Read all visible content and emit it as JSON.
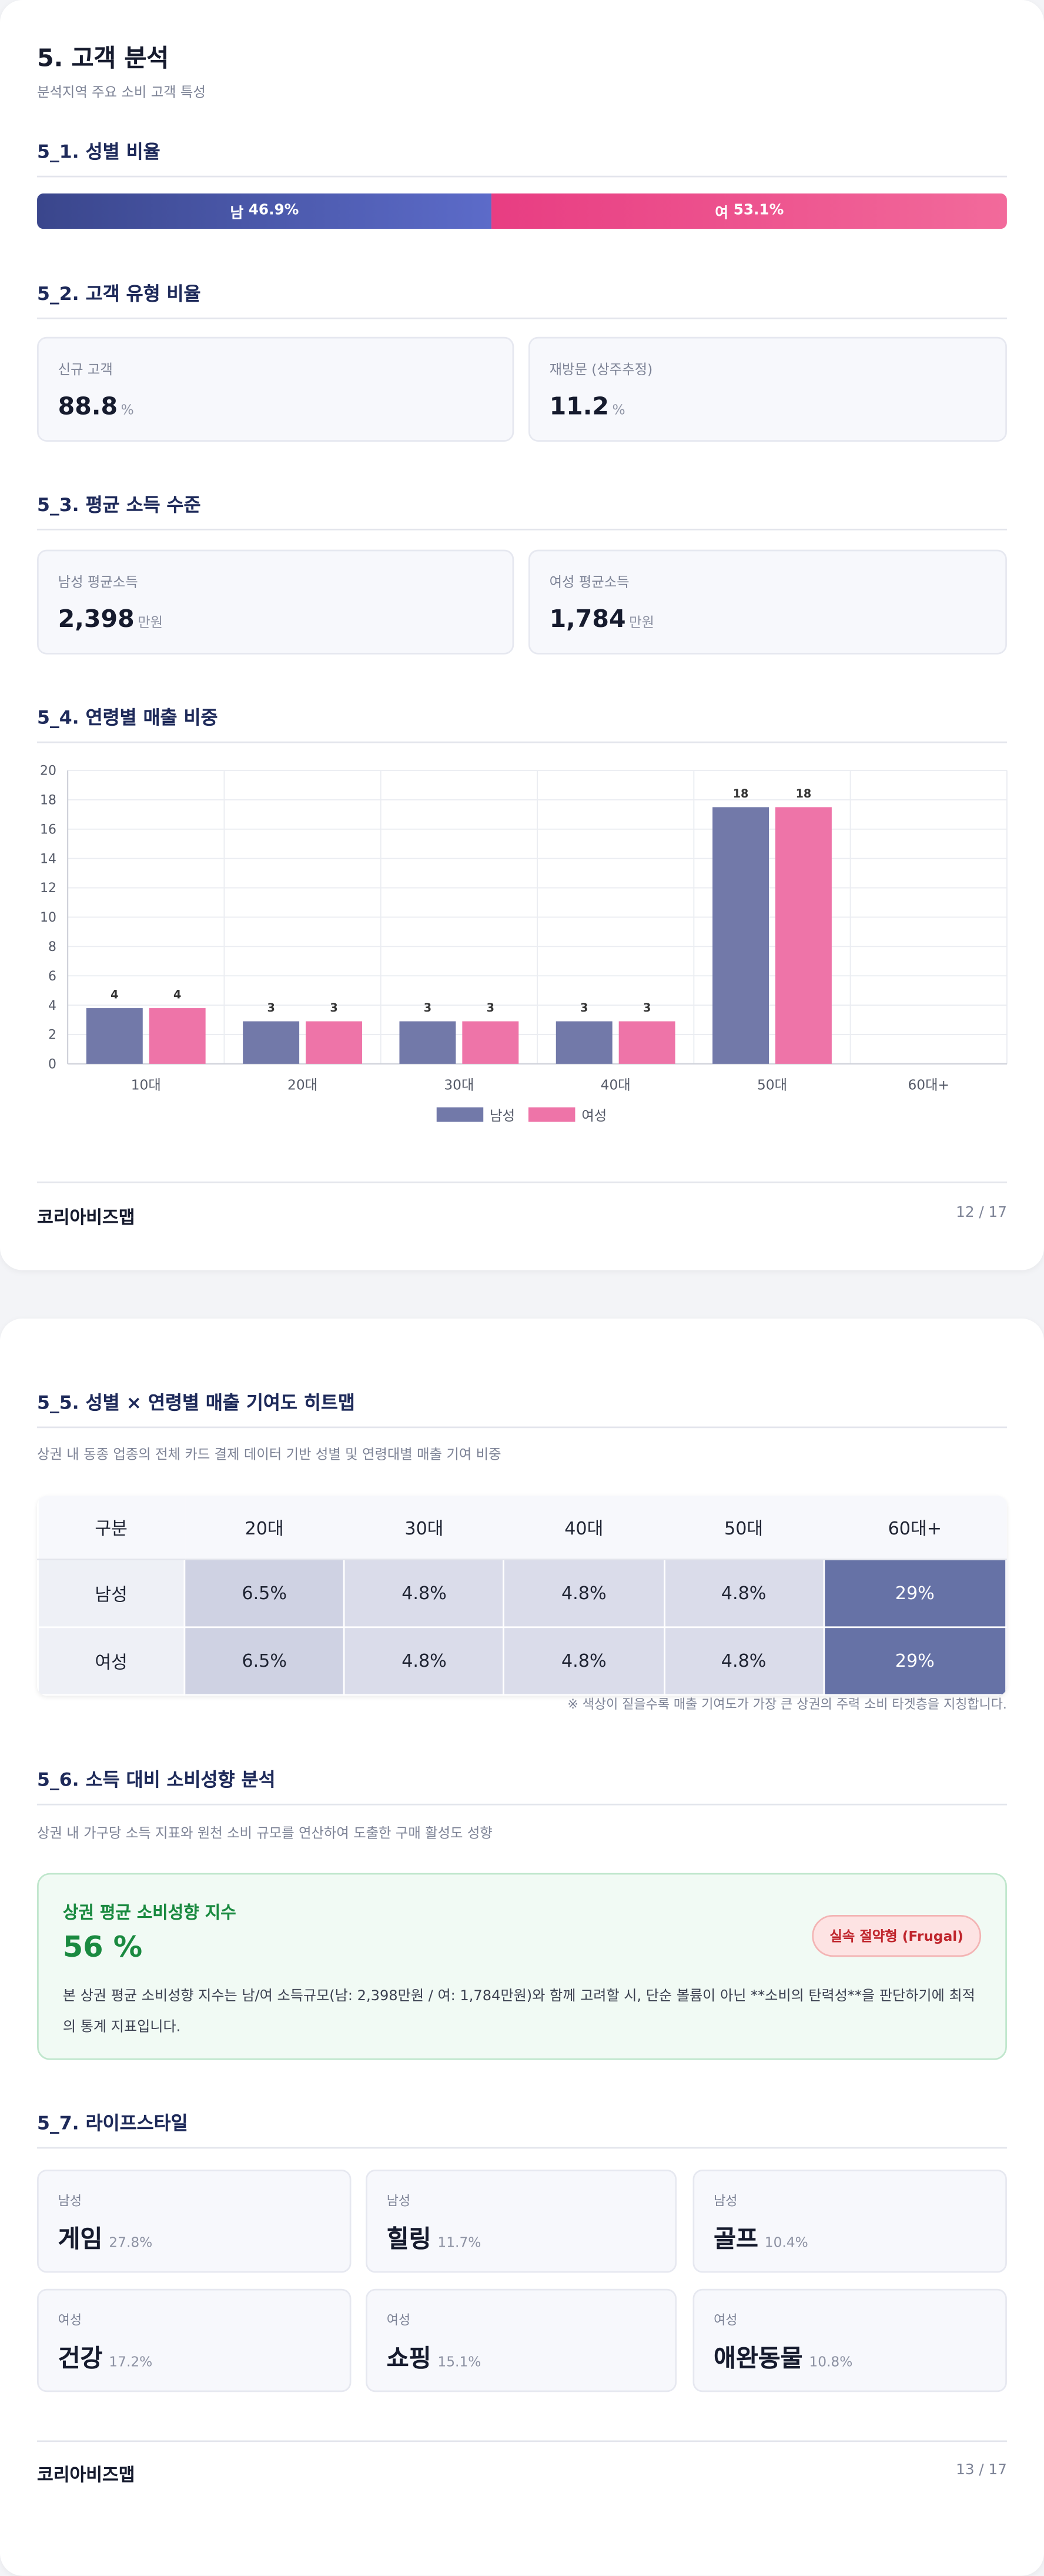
{
  "pages": [
    {
      "title": "5. 고객 분석",
      "subtitle": "분석지역 주요 소비 고객 특성",
      "gender": {
        "heading": "5_1. 성별 비율",
        "categories": [
          "남",
          "여"
        ],
        "values": [
          46.9,
          53.1
        ],
        "value_labels": [
          "46.9%",
          "53.1%"
        ]
      },
      "customer_type": {
        "heading": "5_2. 고객 유형 비율",
        "items": [
          {
            "label": "신규 고객",
            "value": 88.8,
            "unit": "%"
          },
          {
            "label": "재방문 (상주추정)",
            "value": 11.2,
            "unit": "%"
          }
        ]
      },
      "income": {
        "heading": "5_3. 평균 소득 수준",
        "items": [
          {
            "label": "남성 평균소득",
            "value": "2,398",
            "unit": "만원"
          },
          {
            "label": "여성 평균소득",
            "value": "1,784",
            "unit": "만원"
          }
        ]
      },
      "age_chart": {
        "heading": "5_4. 연령별 매출 비중",
        "type": "bar",
        "categories": [
          "10대",
          "20대",
          "30대",
          "40대",
          "50대",
          "60대+"
        ],
        "series": [
          {
            "name": "남성",
            "color": "#7279a9",
            "values": [
              3.8,
              2.9,
              2.9,
              2.9,
              17.5,
              null
            ],
            "value_labels": [
              "4",
              "3",
              "3",
              "3",
              "18",
              null
            ]
          },
          {
            "name": "여성",
            "color": "#ee74a8",
            "values": [
              3.8,
              2.9,
              2.9,
              2.9,
              17.5,
              null
            ],
            "value_labels": [
              "4",
              "3",
              "3",
              "3",
              "18",
              null
            ]
          }
        ],
        "ylim": [
          0,
          20
        ],
        "yticks": [
          0,
          2,
          4,
          6,
          8,
          10,
          12,
          14,
          16,
          18,
          20
        ],
        "grid": true
      },
      "footer": {
        "brand": "코리아비즈맵",
        "page": "12 / 17"
      }
    },
    {
      "heatmap": {
        "heading": "5_5. 성별 × 연령별 매출 기여도 히트맵",
        "description": "상권 내 동종 업종의 전체 카드 결제 데이터 기반 성별 및 연령대별 매출 기여 비중",
        "columns": [
          "구분",
          "20대",
          "30대",
          "40대",
          "50대",
          "60대+"
        ],
        "rows": [
          [
            "남성",
            "6.5%",
            "4.8%",
            "4.8%",
            "4.8%",
            "29%"
          ],
          [
            "여성",
            "6.5%",
            "4.8%",
            "4.8%",
            "4.8%",
            "29%"
          ]
        ],
        "note": "※ 색상이 짙을수록 매출 기여도가 가장 큰 상권의 주력 소비 타겟층을 지칭합니다."
      },
      "propensity": {
        "heading": "5_6. 소득 대비 소비성향 분석",
        "description": "상권 내 가구당 소득 지표와 원천 소비 규모를 연산하여 도출한 구매 활성도 성향",
        "card_title": "상권 평균 소비성향 지수",
        "value": "56 %",
        "badge": "실속 절약형 (Frugal)",
        "text": "본 상권 평균 소비성향 지수는 남/여 소득규모(남: 2,398만원 / 여: 1,784만원)와 함께 고려할 시, 단순 볼륨이 아닌 **소비의 탄력성**을 판단하기에 최적의 통계 지표입니다."
      },
      "lifestyle": {
        "heading": "5_7. 라이프스타일",
        "items": [
          {
            "gender": "남성",
            "name": "게임",
            "share": "27.8%"
          },
          {
            "gender": "남성",
            "name": "힐링",
            "share": "11.7%"
          },
          {
            "gender": "남성",
            "name": "골프",
            "share": "10.4%"
          },
          {
            "gender": "여성",
            "name": "건강",
            "share": "17.2%"
          },
          {
            "gender": "여성",
            "name": "쇼핑",
            "share": "15.1%"
          },
          {
            "gender": "여성",
            "name": "애완동물",
            "share": "10.8%"
          }
        ]
      },
      "footer": {
        "brand": "코리아비즈맵",
        "page": "13 / 17"
      }
    }
  ]
}
